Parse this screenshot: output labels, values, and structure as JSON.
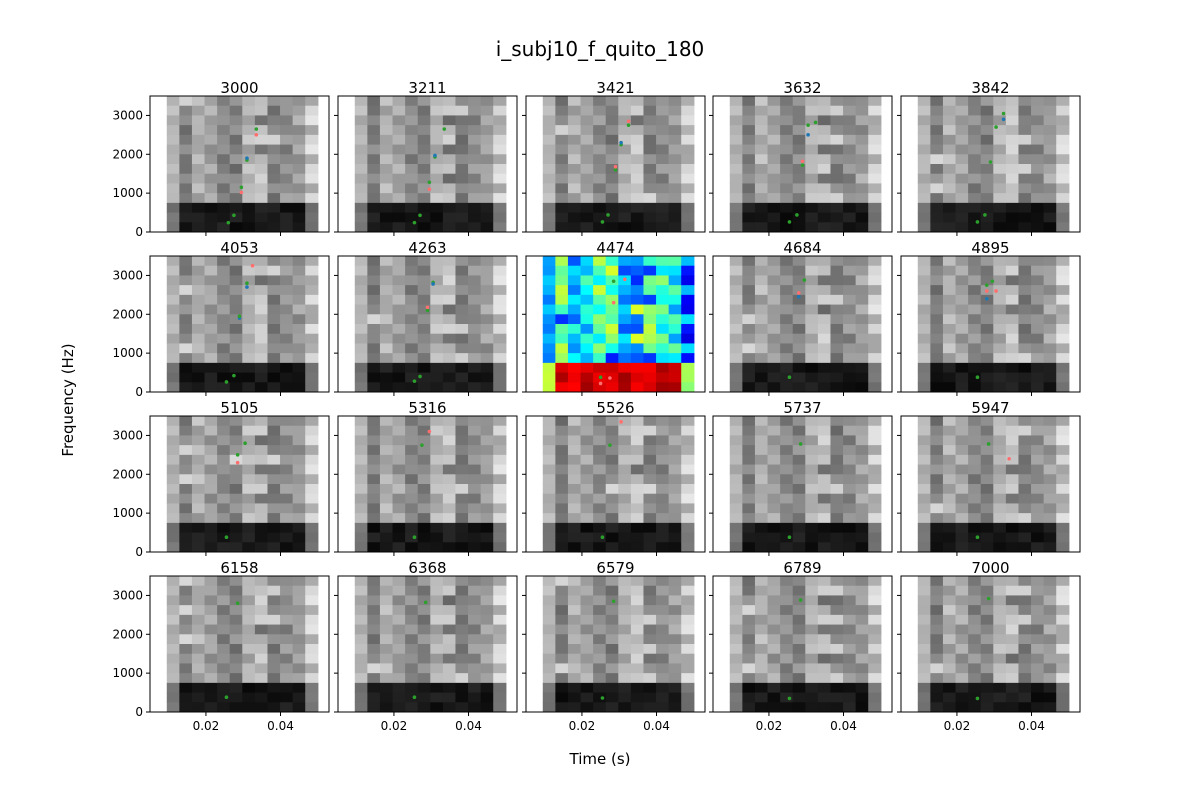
{
  "chart_data": {
    "type": "heatmap",
    "title": "i_subj10_f_quito_180",
    "xlabel": "Time (s)",
    "ylabel": "Frequency (Hz)",
    "xlim": [
      0.005,
      0.053
    ],
    "ylim": [
      0,
      3500
    ],
    "xticks": [
      0.02,
      0.04
    ],
    "xtick_labels": [
      "0.02",
      "0.04"
    ],
    "yticks": [
      0,
      1000,
      2000,
      3000
    ],
    "ytick_labels": [
      "0",
      "1000",
      "2000",
      "3000"
    ],
    "spectrogram_x_extent": [
      0.0095,
      0.05
    ],
    "grid": false,
    "colormaps": [
      "gray_r",
      "jet"
    ],
    "point_colors": {
      "green": "#2ca02c",
      "red": "#ff6f6f",
      "blue": "#1f77b4"
    },
    "panels": [
      {
        "label": "3000",
        "colormap": "gray",
        "points": [
          [
            0.026,
            240,
            "green"
          ],
          [
            0.0275,
            430,
            "green"
          ],
          [
            0.0295,
            1020,
            "red"
          ],
          [
            0.0295,
            1150,
            "green"
          ],
          [
            0.031,
            1850,
            "green"
          ],
          [
            0.031,
            1900,
            "blue"
          ],
          [
            0.0335,
            2500,
            "red"
          ],
          [
            0.0335,
            2650,
            "green"
          ]
        ]
      },
      {
        "label": "3211",
        "colormap": "gray",
        "points": [
          [
            0.0255,
            240,
            "green"
          ],
          [
            0.027,
            430,
            "green"
          ],
          [
            0.0295,
            1100,
            "red"
          ],
          [
            0.0295,
            1280,
            "green"
          ],
          [
            0.031,
            1930,
            "green"
          ],
          [
            0.031,
            1970,
            "blue"
          ],
          [
            0.0335,
            2650,
            "green"
          ]
        ]
      },
      {
        "label": "3421",
        "colormap": "gray",
        "points": [
          [
            0.0255,
            260,
            "green"
          ],
          [
            0.027,
            440,
            "green"
          ],
          [
            0.029,
            1600,
            "green"
          ],
          [
            0.029,
            1680,
            "red"
          ],
          [
            0.0305,
            2250,
            "green"
          ],
          [
            0.0305,
            2300,
            "blue"
          ],
          [
            0.0325,
            2750,
            "green"
          ],
          [
            0.0325,
            2850,
            "red"
          ]
        ]
      },
      {
        "label": "3632",
        "colormap": "gray",
        "points": [
          [
            0.0255,
            260,
            "green"
          ],
          [
            0.0275,
            440,
            "green"
          ],
          [
            0.029,
            1720,
            "green"
          ],
          [
            0.029,
            1820,
            "red"
          ],
          [
            0.0305,
            2500,
            "blue"
          ],
          [
            0.0305,
            2750,
            "green"
          ],
          [
            0.0325,
            2820,
            "green"
          ]
        ]
      },
      {
        "label": "3842",
        "colormap": "gray",
        "points": [
          [
            0.0255,
            260,
            "green"
          ],
          [
            0.0275,
            440,
            "green"
          ],
          [
            0.029,
            1800,
            "green"
          ],
          [
            0.0305,
            2700,
            "green"
          ],
          [
            0.0325,
            2900,
            "blue"
          ],
          [
            0.0325,
            3050,
            "green"
          ]
        ]
      },
      {
        "label": "4053",
        "colormap": "gray",
        "points": [
          [
            0.0255,
            260,
            "green"
          ],
          [
            0.0275,
            420,
            "green"
          ],
          [
            0.029,
            1900,
            "blue"
          ],
          [
            0.029,
            1950,
            "green"
          ],
          [
            0.031,
            2800,
            "green"
          ],
          [
            0.031,
            2700,
            "blue"
          ],
          [
            0.0325,
            3250,
            "red"
          ]
        ]
      },
      {
        "label": "4263",
        "colormap": "gray",
        "points": [
          [
            0.0255,
            280,
            "green"
          ],
          [
            0.027,
            400,
            "green"
          ],
          [
            0.029,
            2100,
            "green"
          ],
          [
            0.029,
            2180,
            "red"
          ],
          [
            0.0305,
            2820,
            "green"
          ],
          [
            0.0305,
            2780,
            "blue"
          ]
        ]
      },
      {
        "label": "4474",
        "colormap": "jet",
        "points": [
          [
            0.025,
            220,
            "red"
          ],
          [
            0.025,
            380,
            "green"
          ],
          [
            0.0275,
            360,
            "red"
          ],
          [
            0.0285,
            2300,
            "red"
          ],
          [
            0.0285,
            2850,
            "green"
          ],
          [
            0.0315,
            2900,
            "red"
          ]
        ]
      },
      {
        "label": "4684",
        "colormap": "gray",
        "points": [
          [
            0.0255,
            380,
            "green"
          ],
          [
            0.028,
            2450,
            "blue"
          ],
          [
            0.028,
            2550,
            "red"
          ],
          [
            0.0295,
            2880,
            "green"
          ]
        ]
      },
      {
        "label": "4895",
        "colormap": "gray",
        "points": [
          [
            0.0255,
            380,
            "green"
          ],
          [
            0.028,
            2400,
            "blue"
          ],
          [
            0.028,
            2600,
            "red"
          ],
          [
            0.028,
            2750,
            "green"
          ],
          [
            0.0295,
            2850,
            "green"
          ],
          [
            0.0305,
            2600,
            "red"
          ]
        ]
      },
      {
        "label": "5105",
        "colormap": "gray",
        "points": [
          [
            0.0255,
            380,
            "green"
          ],
          [
            0.0285,
            2300,
            "red"
          ],
          [
            0.0285,
            2500,
            "green"
          ],
          [
            0.0305,
            2800,
            "green"
          ]
        ]
      },
      {
        "label": "5316",
        "colormap": "gray",
        "points": [
          [
            0.0255,
            380,
            "green"
          ],
          [
            0.0275,
            2750,
            "green"
          ],
          [
            0.0295,
            3100,
            "red"
          ]
        ]
      },
      {
        "label": "5526",
        "colormap": "gray",
        "points": [
          [
            0.0255,
            380,
            "green"
          ],
          [
            0.0275,
            2750,
            "green"
          ],
          [
            0.0305,
            3350,
            "red"
          ]
        ]
      },
      {
        "label": "5737",
        "colormap": "gray",
        "points": [
          [
            0.0255,
            380,
            "green"
          ],
          [
            0.0285,
            2780,
            "green"
          ]
        ]
      },
      {
        "label": "5947",
        "colormap": "gray",
        "points": [
          [
            0.0255,
            380,
            "green"
          ],
          [
            0.0285,
            2780,
            "green"
          ],
          [
            0.034,
            2400,
            "red"
          ]
        ]
      },
      {
        "label": "6158",
        "colormap": "gray",
        "points": [
          [
            0.0255,
            380,
            "green"
          ],
          [
            0.0285,
            2800,
            "green"
          ]
        ]
      },
      {
        "label": "6368",
        "colormap": "gray",
        "points": [
          [
            0.0255,
            380,
            "green"
          ],
          [
            0.0285,
            2820,
            "green"
          ]
        ]
      },
      {
        "label": "6579",
        "colormap": "gray",
        "points": [
          [
            0.0255,
            360,
            "green"
          ],
          [
            0.0285,
            2850,
            "green"
          ]
        ]
      },
      {
        "label": "6789",
        "colormap": "gray",
        "points": [
          [
            0.0255,
            350,
            "green"
          ],
          [
            0.0285,
            2880,
            "green"
          ]
        ]
      },
      {
        "label": "7000",
        "colormap": "gray",
        "points": [
          [
            0.0255,
            350,
            "green"
          ],
          [
            0.0285,
            2920,
            "green"
          ]
        ]
      }
    ]
  }
}
